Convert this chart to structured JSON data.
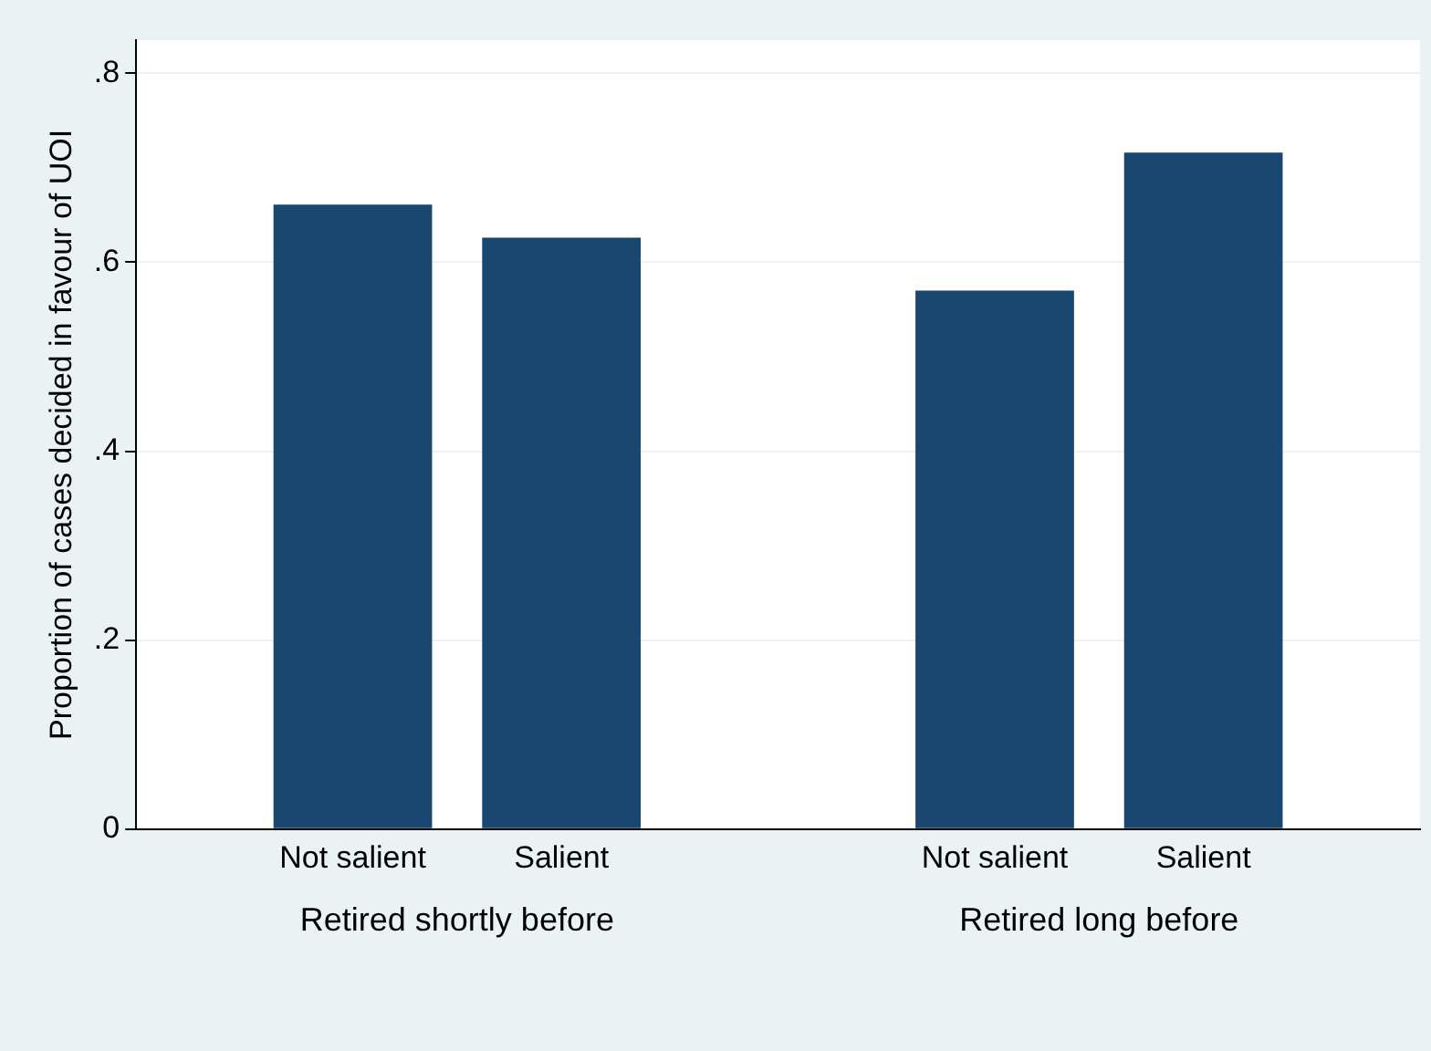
{
  "chart_data": {
    "type": "bar",
    "ylabel": "Proportion of cases decided in favour of UOI",
    "categories": [
      "Retired shortly before",
      "Retired long before"
    ],
    "series": [
      {
        "name": "Not salient",
        "color": "#1a476f",
        "values": [
          0.661,
          0.57
        ]
      },
      {
        "name": "Salient",
        "color": "#1a476f",
        "values": [
          0.626,
          0.716
        ]
      }
    ],
    "ylim": [
      0,
      0.835
    ],
    "yticks": [
      0,
      {
        "value": 0.2,
        "label": ".2"
      },
      {
        "value": 0.4,
        "label": ".4"
      },
      {
        "value": 0.6,
        "label": ".6"
      },
      {
        "value": 0.8,
        "label": ".8"
      }
    ],
    "grid": "y",
    "legend": false
  }
}
